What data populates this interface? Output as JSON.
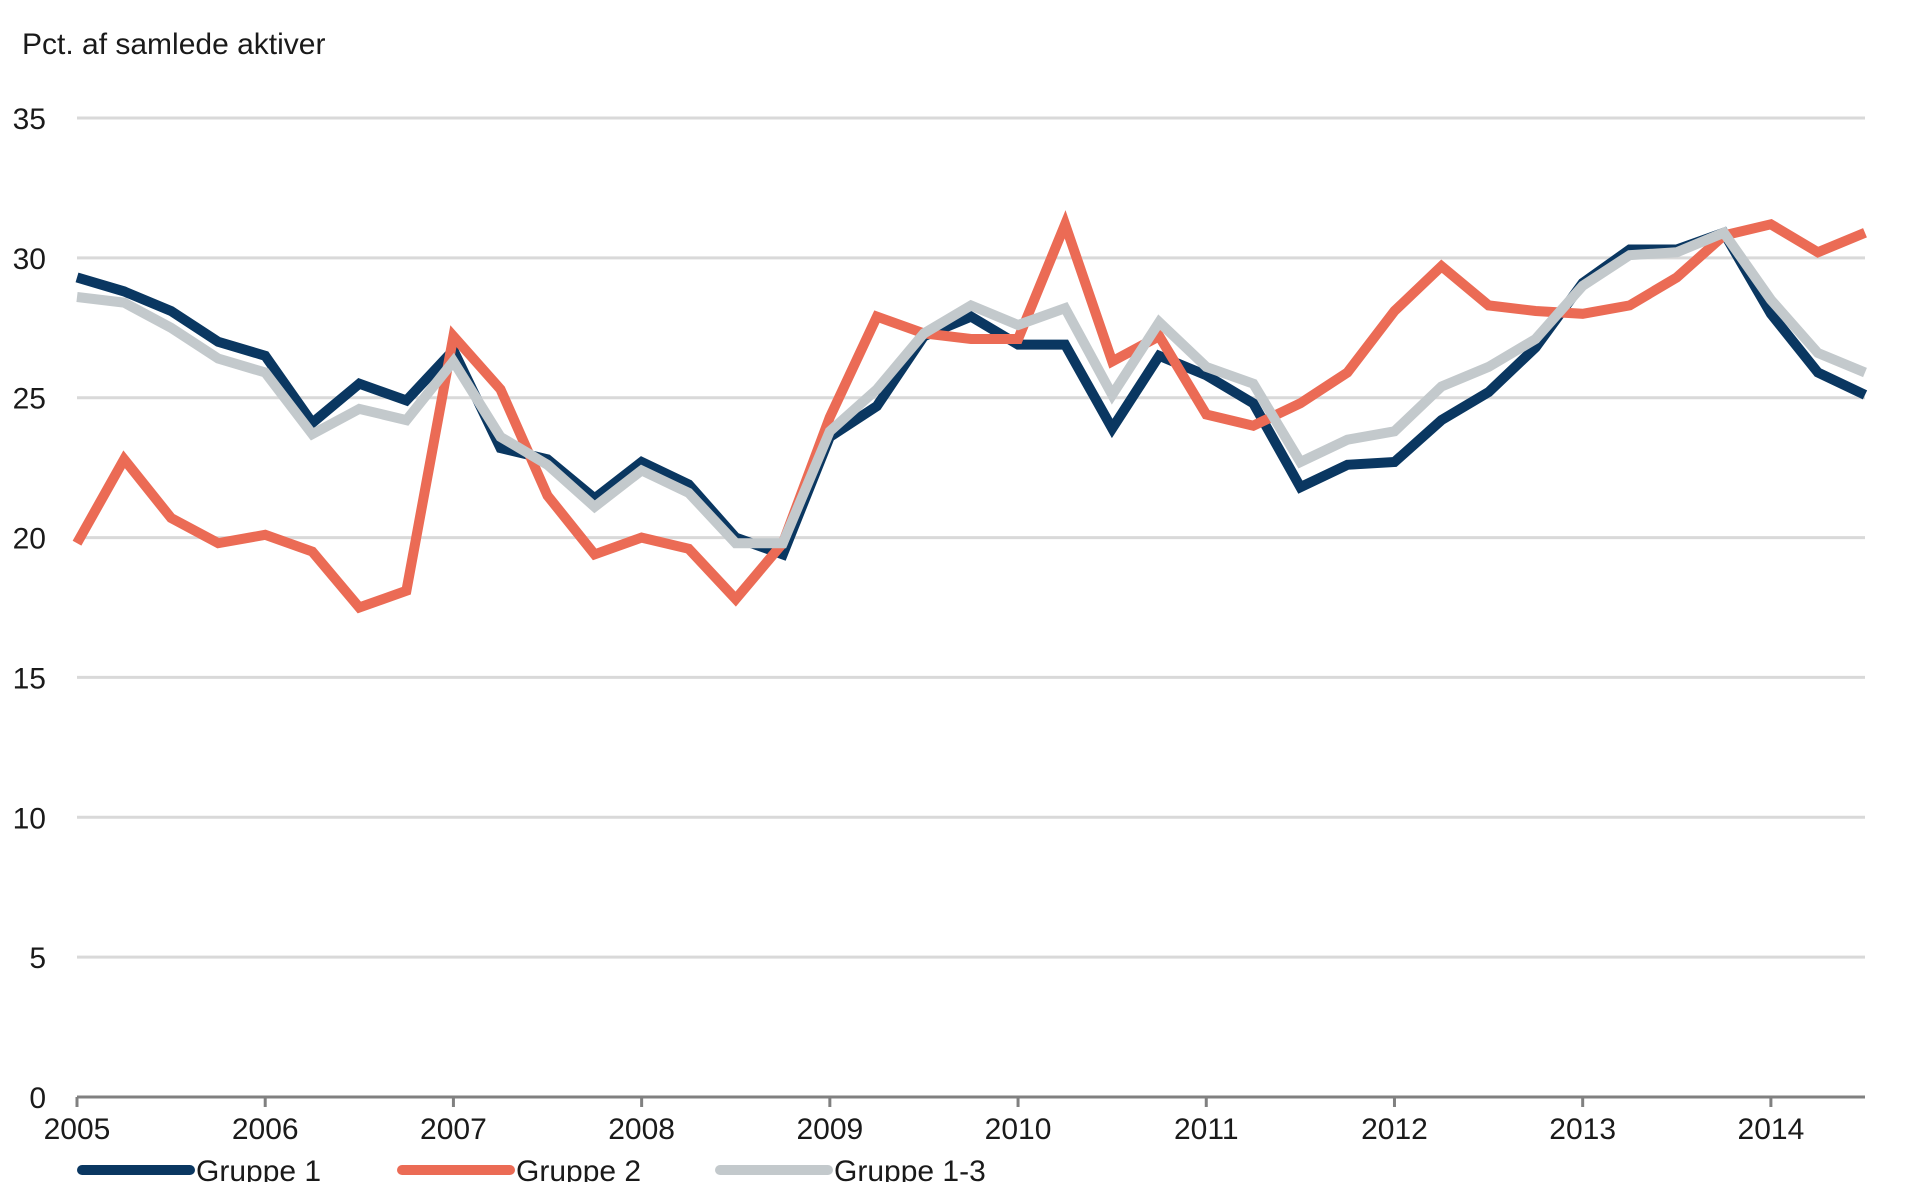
{
  "chart_data": {
    "type": "line",
    "ylabel": "Pct. af samlede aktiver",
    "ylim": [
      0,
      35
    ],
    "yticks": [
      0,
      5,
      10,
      15,
      20,
      25,
      30,
      35
    ],
    "xlim": [
      2005,
      2014.5
    ],
    "xticks": [
      2005,
      2006,
      2007,
      2008,
      2009,
      2010,
      2011,
      2012,
      2013,
      2014
    ],
    "x": [
      2005,
      2005.25,
      2005.5,
      2005.75,
      2006,
      2006.25,
      2006.5,
      2006.75,
      2007,
      2007.25,
      2007.5,
      2007.75,
      2008,
      2008.25,
      2008.5,
      2008.75,
      2009,
      2009.25,
      2009.5,
      2009.75,
      2010,
      2010.25,
      2010.5,
      2010.75,
      2011,
      2011.25,
      2011.5,
      2011.75,
      2012,
      2012.25,
      2012.5,
      2012.75,
      2013,
      2013.25,
      2013.5,
      2013.75,
      2014,
      2014.25,
      2014.5
    ],
    "grid": true,
    "legend_position": "bottom",
    "series": [
      {
        "name": "Gruppe 1",
        "color": "#0a3761",
        "values": [
          29.3,
          28.8,
          28.1,
          27.0,
          26.5,
          24.1,
          25.5,
          24.9,
          26.7,
          23.2,
          22.8,
          21.4,
          22.7,
          21.9,
          20.0,
          19.4,
          23.6,
          24.7,
          27.2,
          27.9,
          26.9,
          26.9,
          23.9,
          26.5,
          25.8,
          24.8,
          21.8,
          22.6,
          22.7,
          24.2,
          25.2,
          26.8,
          29.1,
          30.3,
          30.3,
          30.9,
          28.0,
          25.9,
          25.1
        ]
      },
      {
        "name": "Gruppe 2",
        "color": "#eb6b55",
        "values": [
          19.8,
          22.8,
          20.7,
          19.8,
          20.1,
          19.5,
          17.5,
          18.1,
          27.2,
          25.3,
          21.5,
          19.4,
          20.0,
          19.6,
          17.8,
          19.8,
          24.3,
          27.9,
          27.3,
          27.1,
          27.1,
          31.2,
          26.3,
          27.2,
          24.4,
          24.0,
          24.8,
          25.9,
          28.1,
          29.7,
          28.3,
          28.1,
          28.0,
          28.3,
          29.3,
          30.8,
          31.2,
          30.2,
          30.9
        ]
      },
      {
        "name": "Gruppe 1-3",
        "color": "#c3c9cc",
        "values": [
          28.6,
          28.4,
          27.5,
          26.4,
          25.9,
          23.7,
          24.6,
          24.2,
          26.3,
          23.6,
          22.6,
          21.1,
          22.4,
          21.6,
          19.8,
          19.8,
          23.8,
          25.3,
          27.3,
          28.3,
          27.6,
          28.2,
          25.1,
          27.7,
          26.1,
          25.5,
          22.7,
          23.5,
          23.8,
          25.4,
          26.1,
          27.1,
          29.0,
          30.1,
          30.2,
          30.9,
          28.5,
          26.6,
          25.9
        ]
      }
    ]
  }
}
